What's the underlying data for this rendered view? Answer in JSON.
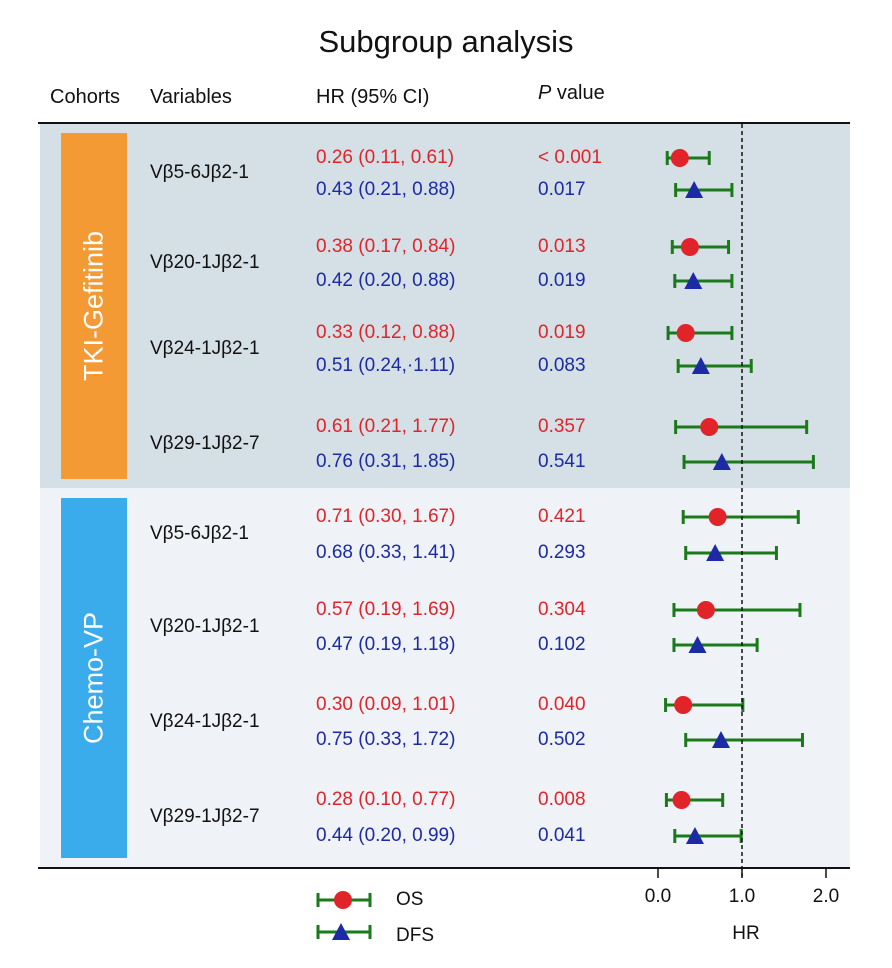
{
  "chart_data": {
    "type": "forest",
    "title": "Subgroup analysis",
    "columns": {
      "cohorts": "Cohorts",
      "variables": "Variables",
      "hr": "HR (95% CI)",
      "p_italic": "P",
      "p_rest": " value"
    },
    "xlabel": "HR",
    "xlim": [
      0,
      2.0
    ],
    "xticks": [
      "0.0",
      "1.0",
      "2.0"
    ],
    "reference_line": 1.0,
    "legend": {
      "os": "OS",
      "dfs": "DFS"
    },
    "colors": {
      "os": "#e0242a",
      "dfs": "#1c2aa5",
      "ci": "#1a7a1a",
      "tki": "#f49a34",
      "chemo": "#3aabeb"
    },
    "cohorts": [
      {
        "name": "TKI-Gefitinib",
        "variables": [
          {
            "name": "Vβ5-6Jβ2-1",
            "os": {
              "text": "0.26 (0.11, 0.61)",
              "hr": 0.26,
              "lo": 0.11,
              "hi": 0.61,
              "p": "< 0.001"
            },
            "dfs": {
              "text": "0.43 (0.21, 0.88)",
              "hr": 0.43,
              "lo": 0.21,
              "hi": 0.88,
              "p": "0.017"
            }
          },
          {
            "name": "Vβ20-1Jβ2-1",
            "os": {
              "text": "0.38 (0.17, 0.84)",
              "hr": 0.38,
              "lo": 0.17,
              "hi": 0.84,
              "p": "0.013"
            },
            "dfs": {
              "text": "0.42 (0.20, 0.88)",
              "hr": 0.42,
              "lo": 0.2,
              "hi": 0.88,
              "p": "0.019"
            }
          },
          {
            "name": "Vβ24-1Jβ2-1",
            "os": {
              "text": "0.33 (0.12, 0.88)",
              "hr": 0.33,
              "lo": 0.12,
              "hi": 0.88,
              "p": "0.019"
            },
            "dfs": {
              "text": "0.51 (0.24,·1.11)",
              "hr": 0.51,
              "lo": 0.24,
              "hi": 1.11,
              "p": "0.083"
            }
          },
          {
            "name": "Vβ29-1Jβ2-7",
            "os": {
              "text": "0.61 (0.21, 1.77)",
              "hr": 0.61,
              "lo": 0.21,
              "hi": 1.77,
              "p": "0.357"
            },
            "dfs": {
              "text": "0.76 (0.31, 1.85)",
              "hr": 0.76,
              "lo": 0.31,
              "hi": 1.85,
              "p": "0.541"
            }
          }
        ]
      },
      {
        "name": "Chemo-VP",
        "variables": [
          {
            "name": "Vβ5-6Jβ2-1",
            "os": {
              "text": "0.71 (0.30, 1.67)",
              "hr": 0.71,
              "lo": 0.3,
              "hi": 1.67,
              "p": "0.421"
            },
            "dfs": {
              "text": "0.68 (0.33, 1.41)",
              "hr": 0.68,
              "lo": 0.33,
              "hi": 1.41,
              "p": "0.293"
            }
          },
          {
            "name": "Vβ20-1Jβ2-1",
            "os": {
              "text": "0.57 (0.19, 1.69)",
              "hr": 0.57,
              "lo": 0.19,
              "hi": 1.69,
              "p": "0.304"
            },
            "dfs": {
              "text": "0.47 (0.19, 1.18)",
              "hr": 0.47,
              "lo": 0.19,
              "hi": 1.18,
              "p": "0.102"
            }
          },
          {
            "name": "Vβ24-1Jβ2-1",
            "os": {
              "text": "0.30 (0.09, 1.01)",
              "hr": 0.3,
              "lo": 0.09,
              "hi": 1.01,
              "p": "0.040"
            },
            "dfs": {
              "text": "0.75 (0.33, 1.72)",
              "hr": 0.75,
              "lo": 0.33,
              "hi": 1.72,
              "p": "0.502"
            }
          },
          {
            "name": "Vβ29-1Jβ2-7",
            "os": {
              "text": "0.28 (0.10, 0.77)",
              "hr": 0.28,
              "lo": 0.1,
              "hi": 0.77,
              "p": "0.008"
            },
            "dfs": {
              "text": "0.44 (0.20, 0.99)",
              "hr": 0.44,
              "lo": 0.2,
              "hi": 0.99,
              "p": "0.041"
            }
          }
        ]
      }
    ]
  }
}
